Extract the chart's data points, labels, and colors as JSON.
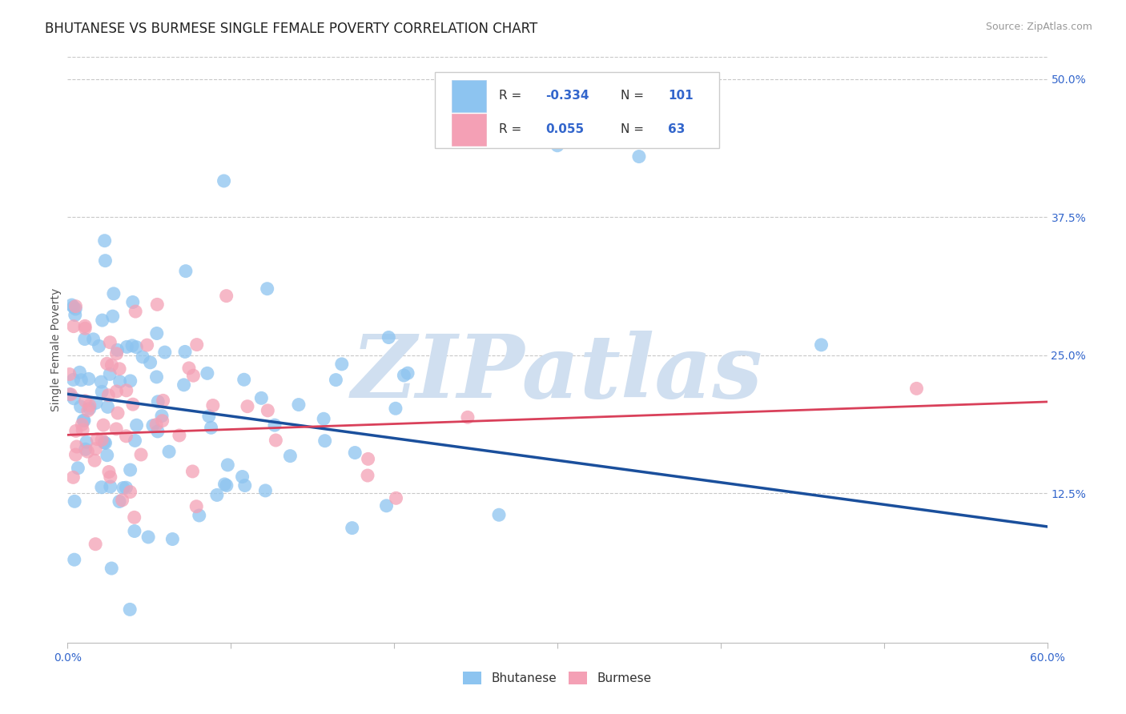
{
  "title": "BHUTANESE VS BURMESE SINGLE FEMALE POVERTY CORRELATION CHART",
  "source": "Source: ZipAtlas.com",
  "ylabel": "Single Female Poverty",
  "xlim": [
    0.0,
    0.6
  ],
  "ylim": [
    -0.01,
    0.52
  ],
  "xticks": [
    0.0,
    0.1,
    0.2,
    0.3,
    0.4,
    0.5,
    0.6
  ],
  "xticklabels": [
    "0.0%",
    "",
    "",
    "",
    "",
    "",
    "60.0%"
  ],
  "ytick_vals": [
    0.125,
    0.25,
    0.375,
    0.5
  ],
  "ytick_labels": [
    "12.5%",
    "25.0%",
    "37.5%",
    "50.0%"
  ],
  "bhutanese_color": "#8dc4f0",
  "burmese_color": "#f4a0b5",
  "bhutanese_line_color": "#1a4f9c",
  "burmese_line_color": "#d9405a",
  "grid_color": "#c8c8c8",
  "background_color": "#ffffff",
  "watermark": "ZIPatlas",
  "watermark_color": "#d0dff0",
  "legend_R_blue": "-0.334",
  "legend_N_blue": "101",
  "legend_R_pink": "0.055",
  "legend_N_pink": "63",
  "title_fontsize": 12,
  "label_fontsize": 10,
  "tick_fontsize": 10,
  "legend_fontsize": 11,
  "blue_line_x0": 0.0,
  "blue_line_y0": 0.215,
  "blue_line_x1": 0.6,
  "blue_line_y1": 0.095,
  "pink_line_x0": 0.0,
  "pink_line_y0": 0.178,
  "pink_line_x1": 0.6,
  "pink_line_y1": 0.208
}
